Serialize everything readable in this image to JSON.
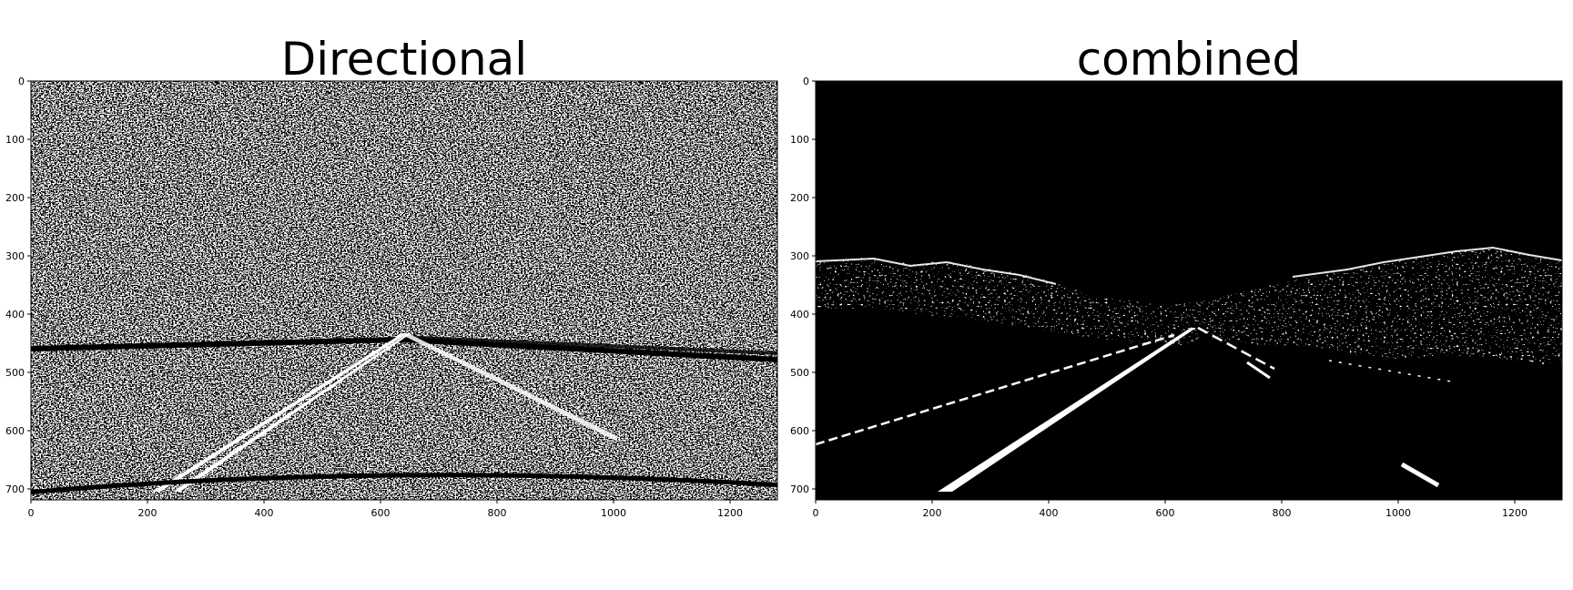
{
  "figure": {
    "background": "#ffffff",
    "image_color": "#000000",
    "feature_color": "#ffffff"
  },
  "panels": [
    {
      "id": "directional",
      "title": "Directional",
      "image_description": "binary directional gradient threshold of a road scene; dense white speckle noise with lane lines visible",
      "x_ticks": [
        "0",
        "200",
        "400",
        "600",
        "800",
        "1000",
        "1200"
      ],
      "y_ticks": [
        "0",
        "100",
        "200",
        "300",
        "400",
        "500",
        "600",
        "700"
      ],
      "x_range": [
        0,
        1280
      ],
      "y_range": [
        0,
        720
      ]
    },
    {
      "id": "combined",
      "title": "combined",
      "image_description": "binary combined threshold of a road scene; black background with white lane lines and hill edges",
      "x_ticks": [
        "0",
        "200",
        "400",
        "600",
        "800",
        "1000",
        "1200"
      ],
      "y_ticks": [
        "0",
        "100",
        "200",
        "300",
        "400",
        "500",
        "600",
        "700"
      ],
      "x_range": [
        0,
        1280
      ],
      "y_range": [
        0,
        720
      ]
    }
  ]
}
